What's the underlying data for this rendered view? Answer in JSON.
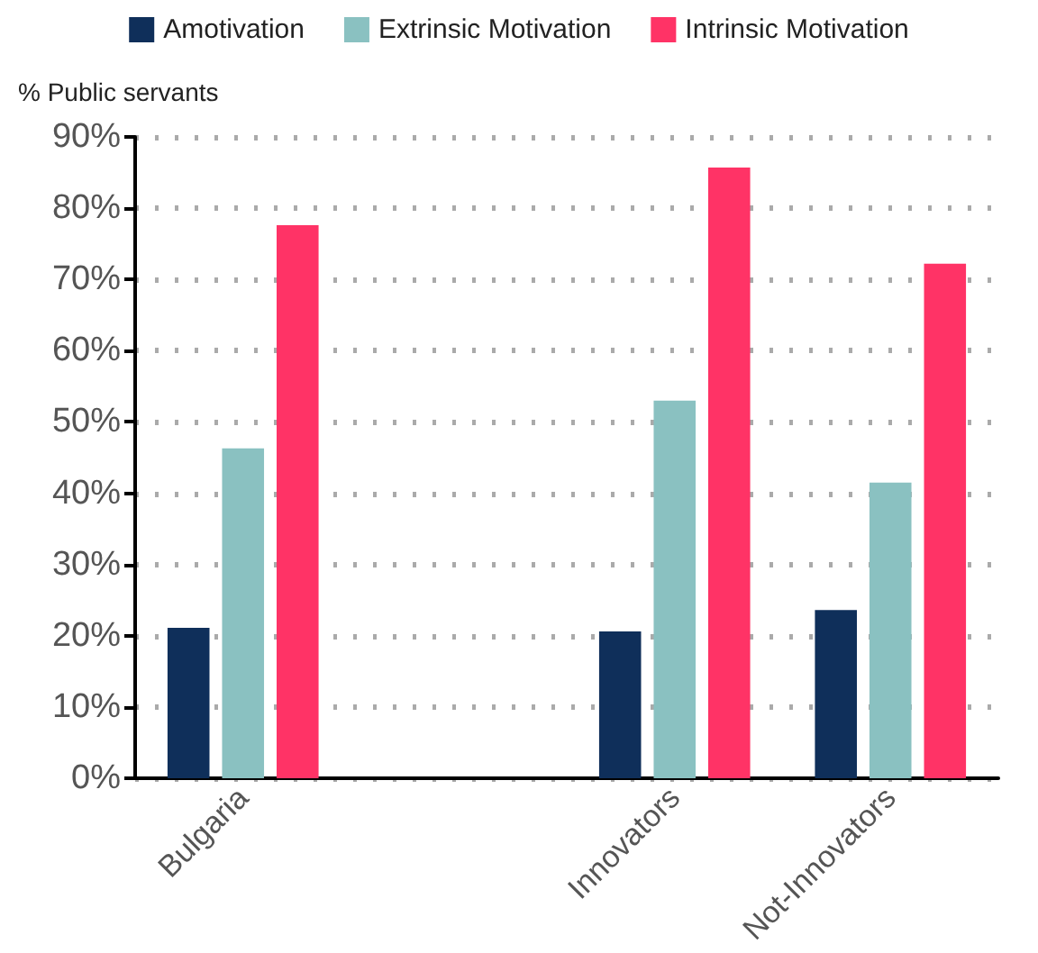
{
  "chart_data": {
    "type": "bar",
    "ylabel": "% Public servants",
    "categories": [
      "Bulgaria",
      null,
      "Innovators",
      "Not-Innovators"
    ],
    "series": [
      {
        "name": "Amotivation",
        "color": "#0f2f5a",
        "values": [
          21.1,
          null,
          20.6,
          23.6
        ]
      },
      {
        "name": "Extrinsic Motivation",
        "color": "#8ac1c1",
        "values": [
          46.3,
          null,
          53.0,
          41.5
        ]
      },
      {
        "name": "Intrinsic Motivation",
        "color": "#ff3366",
        "values": [
          77.6,
          null,
          85.7,
          72.2
        ]
      }
    ],
    "ylim": [
      0,
      90
    ],
    "yticks": [
      {
        "value": 0,
        "label": "0%"
      },
      {
        "value": 10,
        "label": "10%"
      },
      {
        "value": 20,
        "label": "20%"
      },
      {
        "value": 30,
        "label": "30%"
      },
      {
        "value": 40,
        "label": "40%"
      },
      {
        "value": 50,
        "label": "50%"
      },
      {
        "value": 60,
        "label": "60%"
      },
      {
        "value": 70,
        "label": "70%"
      },
      {
        "value": 80,
        "label": "80%"
      },
      {
        "value": 90,
        "label": "90%"
      }
    ],
    "grid": "y",
    "legend": "top"
  }
}
